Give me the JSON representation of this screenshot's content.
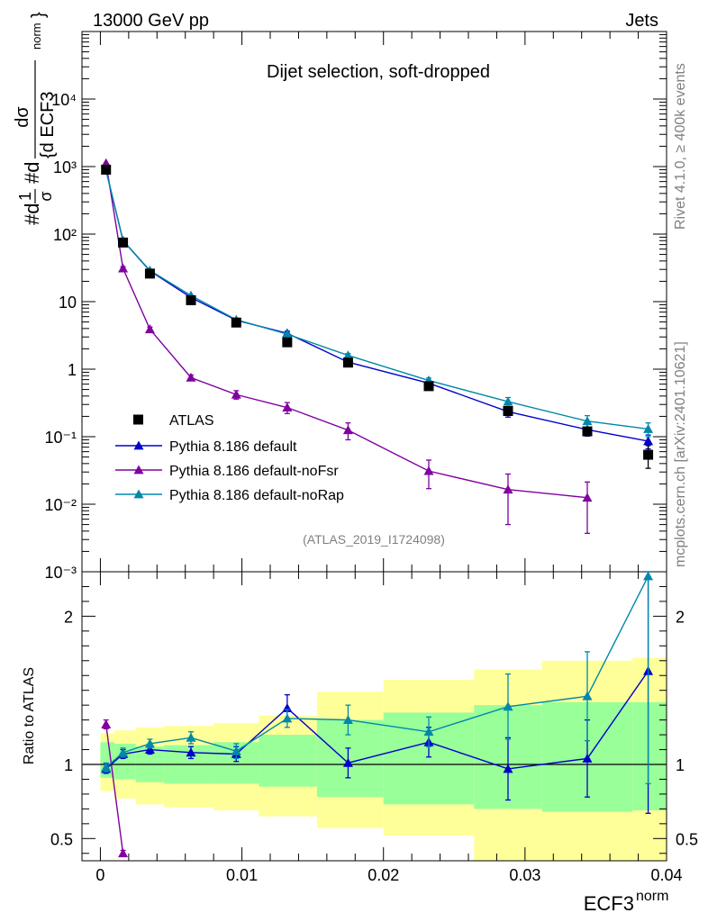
{
  "header": {
    "energy_label": "13000 GeV pp",
    "category": "Jets",
    "rivet_label": "Rivet 4.1.0, ≥ 400k events",
    "mcplots_label": "mcplots.cern.ch [arXiv:2401.10621]"
  },
  "chart_data": [
    {
      "type": "scatter",
      "panel": "main",
      "title": "Dijet selection, soft-dropped",
      "ylabel": "#d1/σ #d dσ/{d ECF3^norm}",
      "ylabel_parts": {
        "line1": "#d",
        "frac1_num": "1",
        "frac1_den": "σ",
        "mid": "#d",
        "frac2_num": "dσ",
        "frac2_den": "{d ECF3",
        "sup": "norm",
        "close": "}"
      },
      "yscale": "log",
      "ylim": [
        0.001,
        100000
      ],
      "xlim": [
        -0.0013,
        0.04
      ],
      "ytick_labels": [
        "10⁻³",
        "10⁻²",
        "10⁻¹",
        "1",
        "10",
        "10²",
        "10³",
        "10⁴"
      ],
      "ref_label": "(ATLAS_2019_I1724098)",
      "legend": [
        "ATLAS",
        "Pythia 8.186 default",
        "Pythia 8.186 default-noFsr",
        "Pythia 8.186 default-noRap"
      ],
      "legend_position": "bottom-left",
      "series": [
        {
          "name": "ATLAS",
          "color": "#000000",
          "marker": "square",
          "x": [
            0.0004,
            0.0016,
            0.0035,
            0.0064,
            0.0096,
            0.0132,
            0.0175,
            0.0232,
            0.0288,
            0.0344,
            0.0387
          ],
          "y": [
            900,
            75,
            26,
            10.5,
            4.9,
            2.5,
            1.25,
            0.56,
            0.24,
            0.12,
            0.054
          ],
          "err": [
            40,
            3,
            1,
            0.4,
            0.2,
            0.1,
            0.06,
            0.04,
            0.02,
            0.015,
            0.02
          ]
        },
        {
          "name": "Pythia 8.186 default",
          "color": "#0000cc",
          "marker": "triangle",
          "x": [
            0.0004,
            0.0016,
            0.0035,
            0.0064,
            0.0096,
            0.0132,
            0.0175,
            0.0232,
            0.0288,
            0.0344,
            0.0387
          ],
          "y": [
            880,
            80,
            28.5,
            11.5,
            5.3,
            3.4,
            1.27,
            0.62,
            0.235,
            0.127,
            0.086
          ],
          "err": [
            30,
            3,
            1,
            0.5,
            0.3,
            0.25,
            0.1,
            0.06,
            0.04,
            0.025,
            0.02
          ]
        },
        {
          "name": "Pythia 8.186 default-noFsr",
          "color": "#8000a0",
          "marker": "triangle",
          "x": [
            0.0004,
            0.0016,
            0.0035,
            0.0064,
            0.0096,
            0.0132,
            0.0175,
            0.0232,
            0.0288,
            0.0344
          ],
          "y": [
            1120,
            31,
            3.9,
            0.75,
            0.42,
            0.27,
            0.125,
            0.031,
            0.0165,
            0.0125
          ],
          "err": [
            40,
            2,
            0.3,
            0.07,
            0.06,
            0.05,
            0.035,
            0.014,
            0.0115,
            0.0088
          ]
        },
        {
          "name": "Pythia 8.186 default-noRap",
          "color": "#0088aa",
          "marker": "triangle",
          "x": [
            0.0004,
            0.0016,
            0.0035,
            0.0064,
            0.0096,
            0.0132,
            0.0175,
            0.0232,
            0.0288,
            0.0344,
            0.0387
          ],
          "y": [
            880,
            80,
            29,
            12.3,
            5.4,
            3.3,
            1.6,
            0.68,
            0.33,
            0.17,
            0.13
          ],
          "err": [
            30,
            3,
            1,
            0.5,
            0.3,
            0.2,
            0.1,
            0.06,
            0.05,
            0.035,
            0.03
          ]
        }
      ]
    },
    {
      "type": "scatter",
      "panel": "ratio",
      "ylabel": "Ratio to ATLAS",
      "xlabel": "ECF3",
      "xlabel_sup": "norm",
      "ylim": [
        0.35,
        2.3
      ],
      "xlim": [
        -0.0013,
        0.04
      ],
      "reference_line": 1,
      "yticks": [
        0.5,
        1,
        2
      ],
      "ytick_labels": [
        "0.5",
        "1",
        "2"
      ],
      "xticks": [
        0,
        0.01,
        0.02,
        0.03,
        0.04
      ],
      "xtick_labels": [
        "0",
        "0.01",
        "0.02",
        "0.03",
        "0.04"
      ],
      "bands": {
        "edges": [
          0.0,
          0.001,
          0.0025,
          0.0045,
          0.008,
          0.0112,
          0.0153,
          0.02,
          0.0264,
          0.0312,
          0.0376,
          0.04
        ],
        "inner_color": "#99ff99",
        "outer_color": "#ffff99",
        "inner_low": [
          0.91,
          0.9,
          0.88,
          0.87,
          0.87,
          0.85,
          0.78,
          0.73,
          0.7,
          0.68,
          0.69
        ],
        "inner_high": [
          1.15,
          1.14,
          1.12,
          1.13,
          1.15,
          1.2,
          1.3,
          1.35,
          1.4,
          1.42,
          1.42
        ],
        "outer_low": [
          0.82,
          0.77,
          0.73,
          0.71,
          0.69,
          0.65,
          0.57,
          0.52,
          0.35,
          0.35,
          0.35
        ],
        "outer_high": [
          1.21,
          1.23,
          1.25,
          1.26,
          1.28,
          1.33,
          1.49,
          1.57,
          1.64,
          1.7,
          1.72
        ]
      },
      "series": [
        {
          "name": "Pythia 8.186 default",
          "color": "#0000cc",
          "x": [
            0.0004,
            0.0016,
            0.0035,
            0.0064,
            0.0096,
            0.0132,
            0.0175,
            0.0232,
            0.0288,
            0.0344,
            0.0387
          ],
          "y": [
            0.97,
            1.07,
            1.1,
            1.08,
            1.07,
            1.38,
            1.01,
            1.15,
            0.97,
            1.04,
            1.63
          ],
          "err": [
            0.03,
            0.03,
            0.03,
            0.04,
            0.05,
            0.09,
            0.1,
            0.1,
            0.21,
            0.26,
            0.96
          ]
        },
        {
          "name": "Pythia 8.186 default-noFsr",
          "color": "#8000a0",
          "x": [
            0.0004,
            0.0016
          ],
          "y": [
            1.27,
            0.4
          ],
          "err": [
            0.03,
            0.02
          ]
        },
        {
          "name": "Pythia 8.186 default-noRap",
          "color": "#0088aa",
          "x": [
            0.0004,
            0.0016,
            0.0035,
            0.0064,
            0.0096,
            0.0132,
            0.0175,
            0.0232,
            0.0288,
            0.0344,
            0.0387
          ],
          "y": [
            0.98,
            1.08,
            1.14,
            1.18,
            1.09,
            1.31,
            1.3,
            1.22,
            1.39,
            1.46,
            2.27
          ],
          "err": [
            0.03,
            0.03,
            0.03,
            0.04,
            0.05,
            0.06,
            0.1,
            0.1,
            0.22,
            0.3,
            1.4
          ]
        }
      ]
    }
  ]
}
